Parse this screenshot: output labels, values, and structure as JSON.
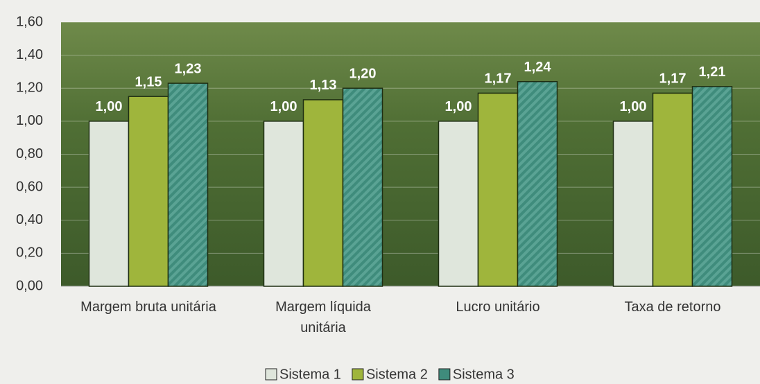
{
  "chart_data": {
    "type": "bar",
    "categories": [
      "Margem bruta unitária",
      "Margem líquida unitária",
      "Lucro unitário",
      "Taxa de retorno"
    ],
    "series": [
      {
        "name": "Sistema 1",
        "color": "#dfe6dc",
        "values": [
          1.0,
          1.0,
          1.0,
          1.0
        ],
        "value_labels": [
          "1,00",
          "1,00",
          "1,00",
          "1,00"
        ]
      },
      {
        "name": "Sistema 2",
        "color": "#9fb53c",
        "values": [
          1.15,
          1.13,
          1.17,
          1.17
        ],
        "value_labels": [
          "1,15",
          "1,13",
          "1,17",
          "1,17"
        ]
      },
      {
        "name": "Sistema 3",
        "color": "#3f8c7c",
        "values": [
          1.23,
          1.2,
          1.24,
          1.21
        ],
        "value_labels": [
          "1,23",
          "1,20",
          "1,24",
          "1,21"
        ]
      }
    ],
    "ylim": [
      0,
      1.6
    ],
    "yticks": [
      {
        "value": 0,
        "label": "0,00"
      },
      {
        "value": 0.2,
        "label": "0,20"
      },
      {
        "value": 0.4,
        "label": "0,40"
      },
      {
        "value": 0.6,
        "label": "0,60"
      },
      {
        "value": 0.8,
        "label": "0,80"
      },
      {
        "value": 1.0,
        "label": "1,00"
      },
      {
        "value": 1.2,
        "label": "1,20"
      },
      {
        "value": 1.4,
        "label": "1,40"
      },
      {
        "value": 1.6,
        "label": "1,60"
      }
    ],
    "grid": true
  }
}
